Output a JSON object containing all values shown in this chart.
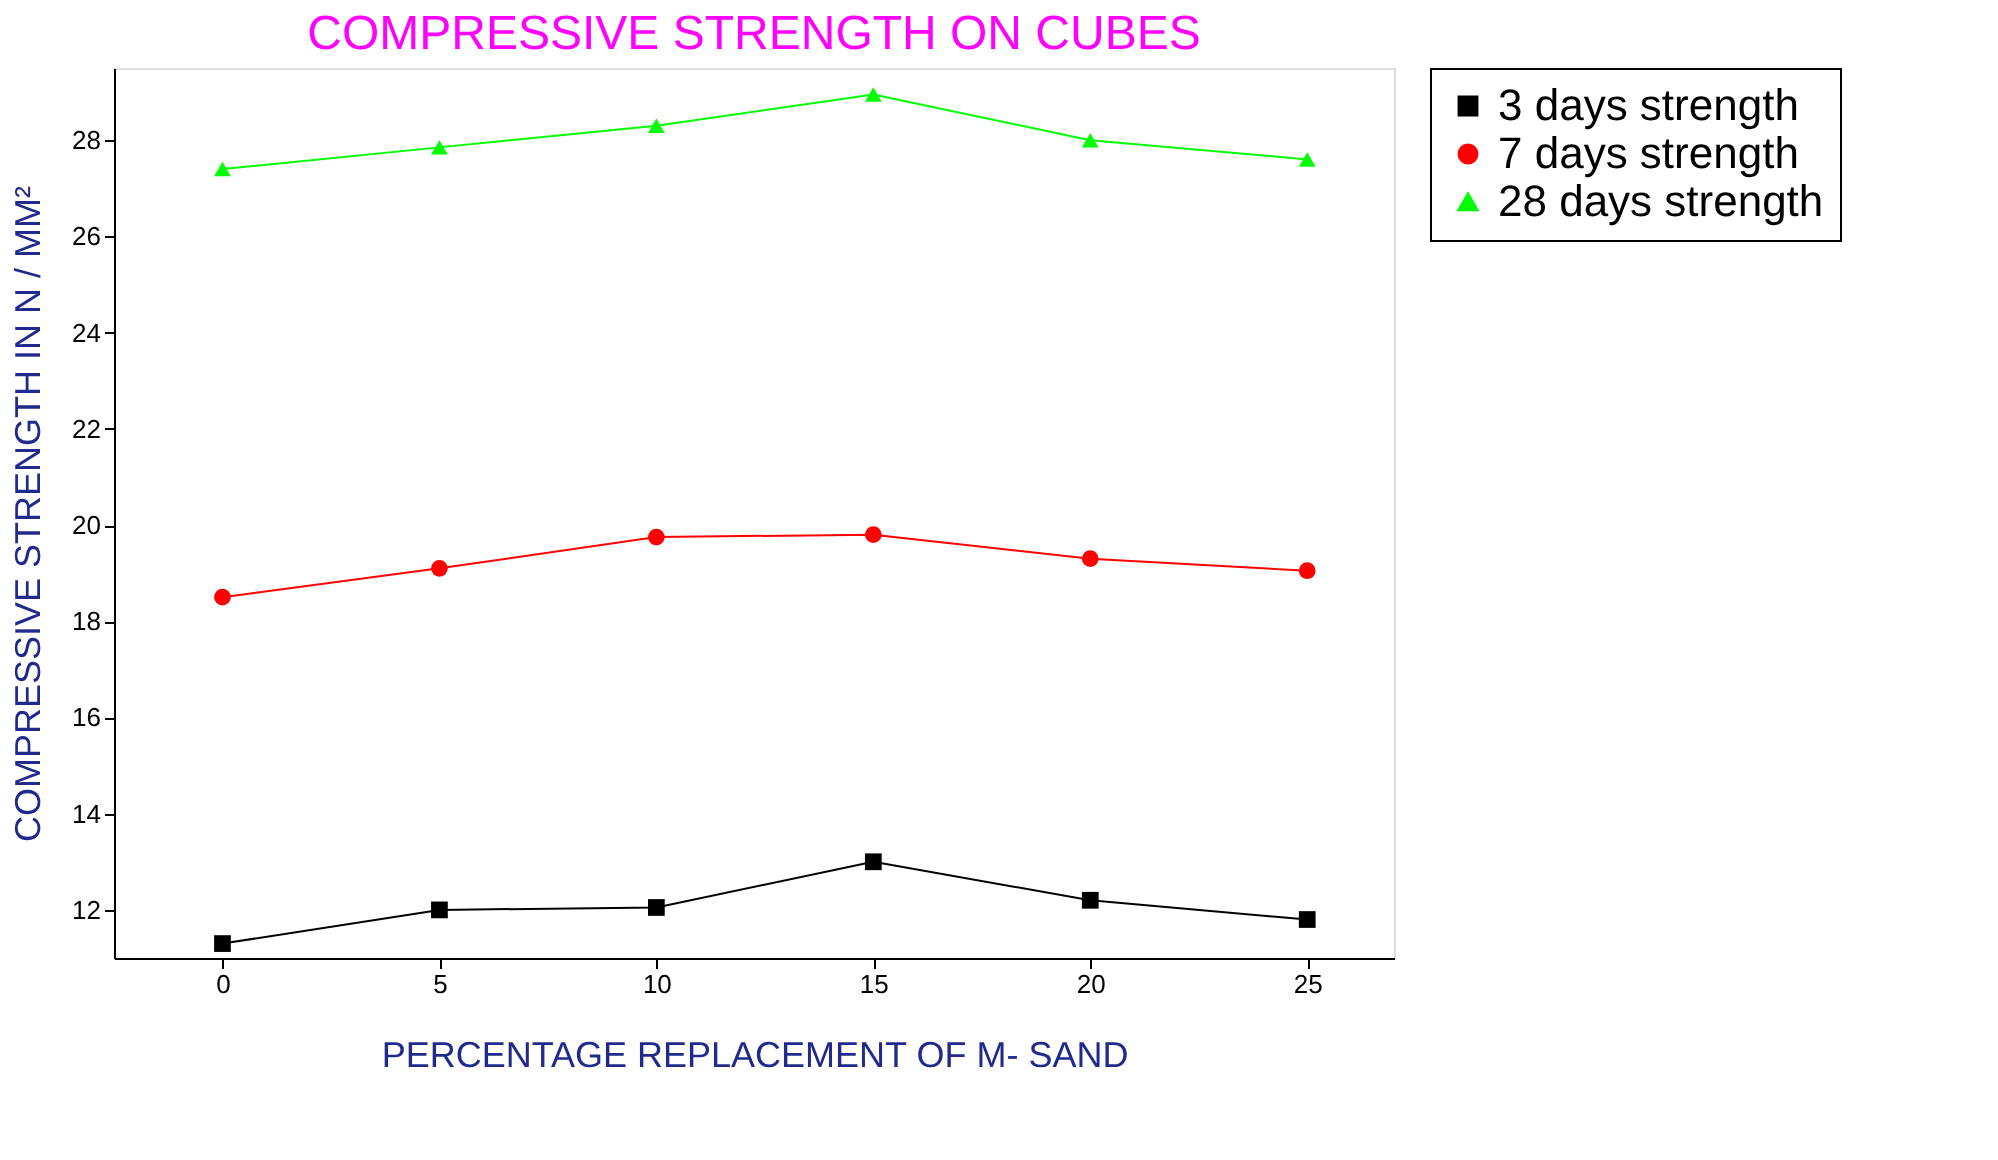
{
  "chart_data": {
    "type": "line",
    "title": "COMPRESSIVE STRENGTH ON CUBES",
    "xlabel": "PERCENTAGE REPLACEMENT OF M- SAND",
    "ylabel": "COMPRESSIVE STRENGTH IN N / MM²",
    "x": [
      0,
      5,
      10,
      15,
      20,
      25
    ],
    "series": [
      {
        "name": "3 days strength",
        "color": "#000000",
        "marker": "square",
        "values": [
          11.3,
          12.0,
          12.05,
          13.0,
          12.2,
          11.8
        ]
      },
      {
        "name": "7 days strength",
        "color": "#ff0000",
        "marker": "circle",
        "values": [
          18.5,
          19.1,
          19.75,
          19.8,
          19.3,
          19.05
        ]
      },
      {
        "name": "28 days strength",
        "color": "#00ff00",
        "marker": "triangle",
        "values": [
          27.4,
          27.85,
          28.3,
          28.95,
          28.0,
          27.6
        ]
      }
    ],
    "xlim": [
      -2.5,
      27
    ],
    "xticks": [
      0,
      5,
      10,
      15,
      20,
      25
    ],
    "ylim": [
      11,
      29.5
    ],
    "yticks": [
      12,
      14,
      16,
      18,
      20,
      22,
      24,
      26,
      28
    ],
    "grid": false,
    "legend": "right",
    "line_style": "solid"
  }
}
